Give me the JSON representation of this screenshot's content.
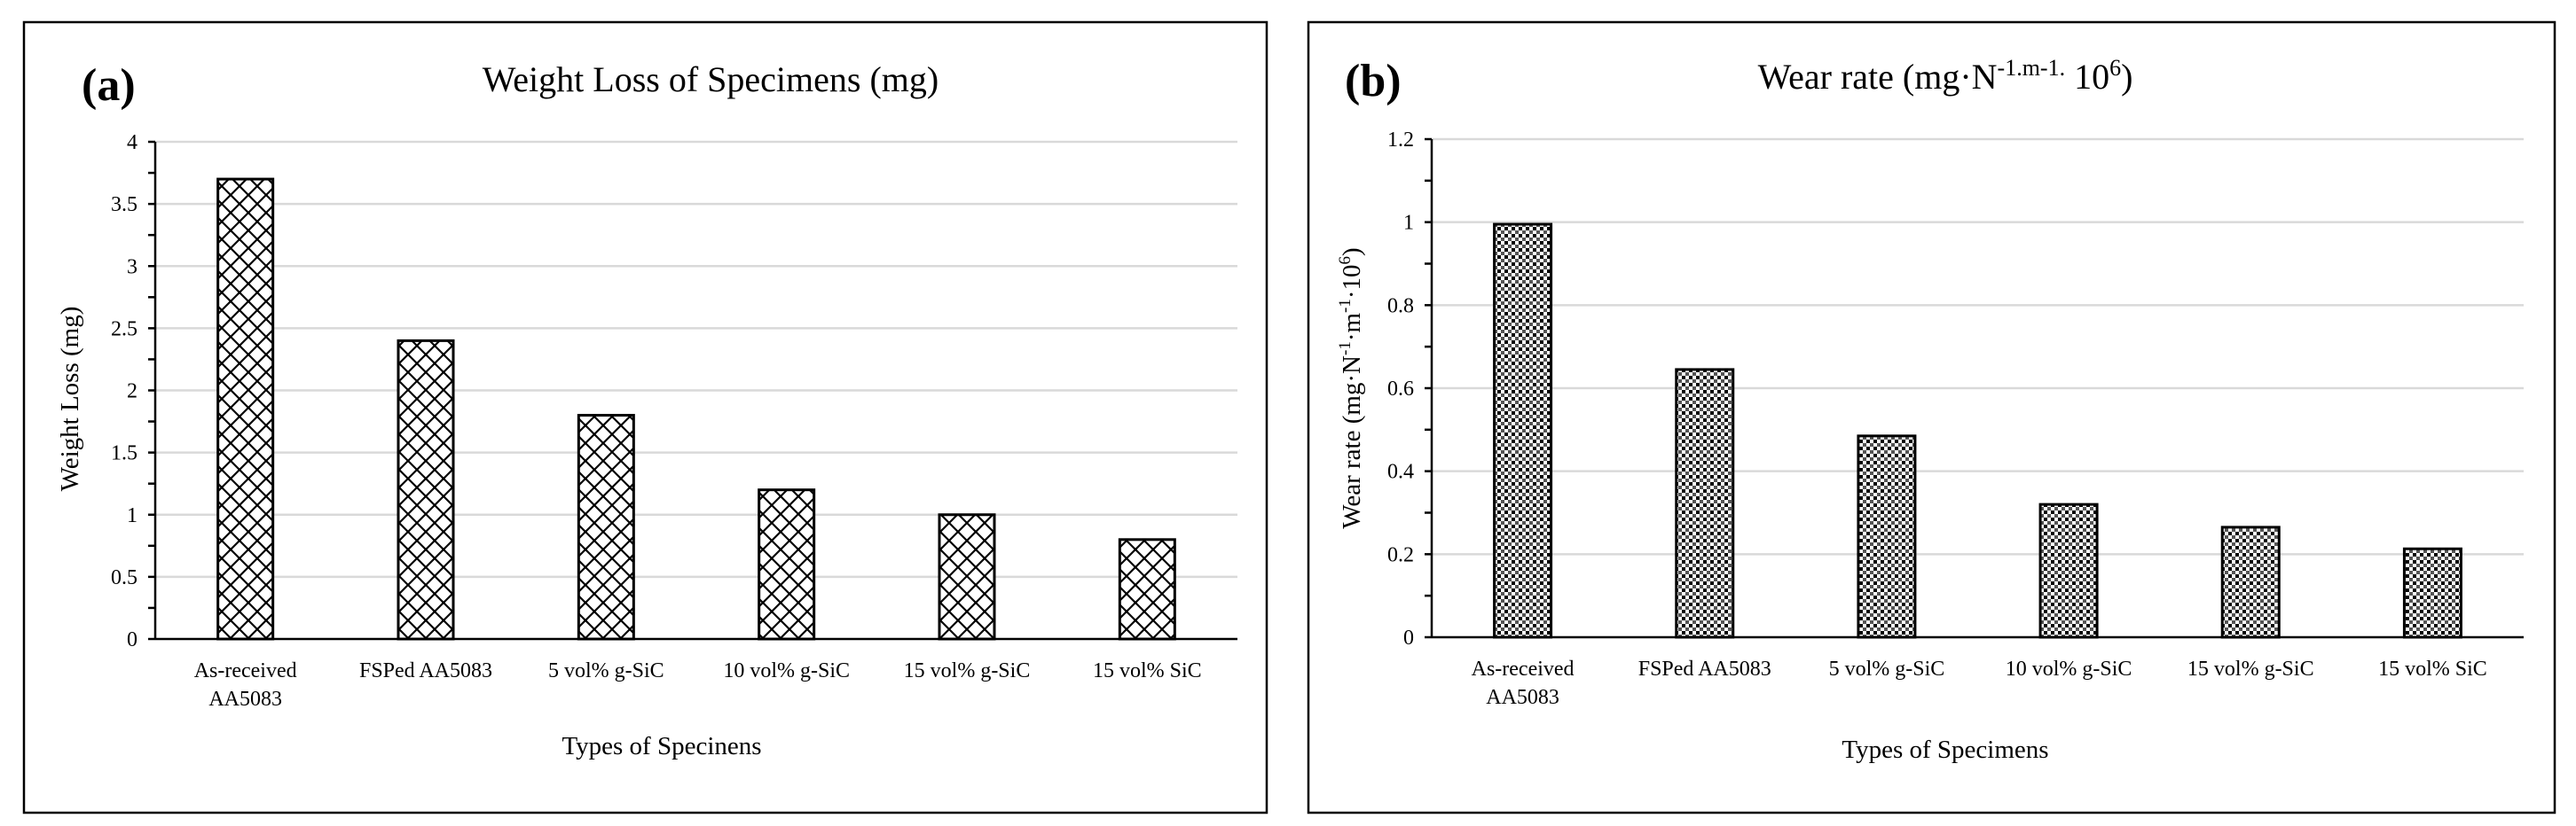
{
  "chart_data": [
    {
      "type": "bar",
      "panel_label": "(a)",
      "title": "Weight Loss of Specimens (mg)",
      "xlabel": "Types of Specinens",
      "ylabel": "Weight Loss (mg)",
      "categories": [
        [
          "As-received",
          "AA5083"
        ],
        [
          "FSPed AA5083"
        ],
        [
          "5 vol% g-SiC"
        ],
        [
          "10 vol% g-SiC"
        ],
        [
          "15 vol% g-SiC"
        ],
        [
          "15 vol% SiC"
        ]
      ],
      "values": [
        3.7,
        2.4,
        1.8,
        1.2,
        1.0,
        0.8
      ],
      "ylim": [
        0,
        4
      ],
      "yticks": [
        "0",
        "0.5",
        "1",
        "1.5",
        "2",
        "2.5",
        "3",
        "3.5",
        "4"
      ],
      "grid": true,
      "pattern": "crosshatch"
    },
    {
      "type": "bar",
      "panel_label": "(b)",
      "title": {
        "base": "Wear rate (mg·N",
        "sup1": "-1.m-1.",
        "mid": " 10",
        "sup2": "6",
        "end": ")"
      },
      "xlabel": "Types of Specimens",
      "ylabel": {
        "base": "Wear rate (mg·N",
        "sup1": "-1",
        "mid1": "·m",
        "sup2": "-1",
        "mid2": "·10",
        "sup3": "6",
        "end": ")"
      },
      "categories": [
        [
          "As-received",
          "AA5083"
        ],
        [
          "FSPed AA5083"
        ],
        [
          "5 vol% g-SiC"
        ],
        [
          "10 vol% g-SiC"
        ],
        [
          "15 vol% g-SiC"
        ],
        [
          "15 vol% SiC"
        ]
      ],
      "values": [
        0.995,
        0.645,
        0.485,
        0.32,
        0.265,
        0.213
      ],
      "ylim": [
        0,
        1.2
      ],
      "yticks": [
        "0",
        "0.2",
        "0.4",
        "0.6",
        "0.8",
        "1",
        "1.2"
      ],
      "grid": true,
      "pattern": "dots"
    }
  ]
}
